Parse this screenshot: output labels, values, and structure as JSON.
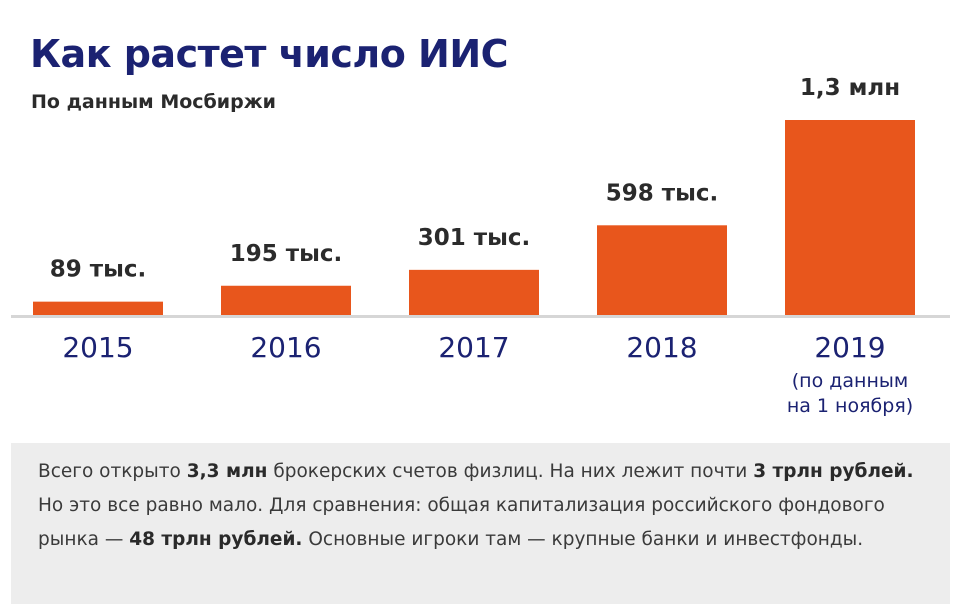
{
  "title": "Как растет число ИИС",
  "subtitle": "По данным Мосбиржи",
  "colors": {
    "bar": "#e8561c",
    "title": "#1b2272",
    "axis_label": "#1b2272",
    "value_label": "#2b2b2b",
    "note_bg": "#ededed"
  },
  "chart_data": {
    "type": "bar",
    "title": "Как растет число ИИС",
    "subtitle": "По данным Мосбиржи",
    "categories": [
      "2015",
      "2016",
      "2017",
      "2018",
      "2019"
    ],
    "category_notes": [
      "",
      "",
      "",
      "",
      "(по данным\nна 1 ноября)"
    ],
    "values": [
      89000,
      195000,
      301000,
      598000,
      1300000
    ],
    "value_labels": [
      "89 тыс.",
      "195 тыс.",
      "301 тыс.",
      "598 тыс.",
      "1,3 млн"
    ],
    "xlabel": "",
    "ylabel": "",
    "ylim": [
      0,
      1300000
    ],
    "grid": false,
    "legend": "none"
  },
  "note": {
    "parts": [
      {
        "text": "Всего открыто ",
        "bold": false
      },
      {
        "text": "3,3 млн",
        "bold": true
      },
      {
        "text": " брокерских счетов физлиц. На них лежит почти ",
        "bold": false
      },
      {
        "text": "3 трлн рублей.",
        "bold": true
      },
      {
        "text": " Но это все равно мало. Для сравнения: общая капитализация российского фондового рынка — ",
        "bold": false
      },
      {
        "text": "48 трлн рублей.",
        "bold": true
      },
      {
        "text": " Основные игроки там — крупные банки и инвестфонды.",
        "bold": false
      }
    ]
  }
}
